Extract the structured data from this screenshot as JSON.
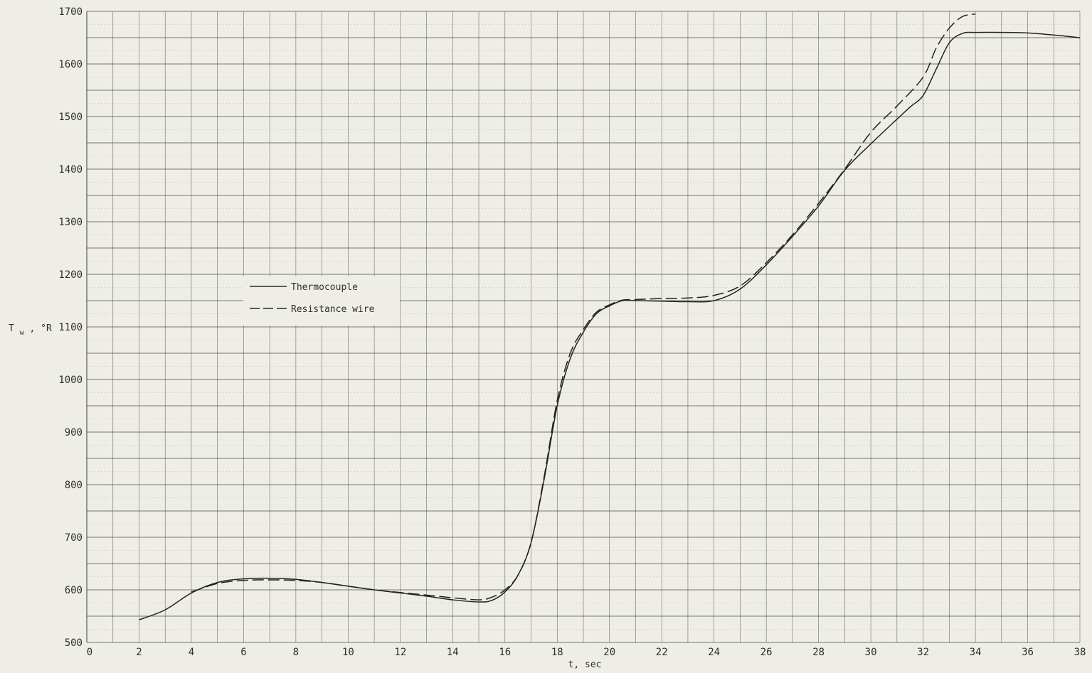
{
  "chart_data": {
    "type": "line",
    "title": "",
    "xlabel": "t, sec",
    "ylabel_main": "T",
    "ylabel_sub": "w",
    "ylabel_unit": ", °R",
    "xlim": [
      0,
      38
    ],
    "ylim": [
      500,
      1700
    ],
    "x_ticks": [
      "0",
      "2",
      "4",
      "6",
      "8",
      "10",
      "12",
      "14",
      "16",
      "18",
      "20",
      "22",
      "24",
      "26",
      "28",
      "30",
      "32",
      "34",
      "36",
      "38"
    ],
    "y_ticks": [
      "500",
      "600",
      "700",
      "800",
      "900",
      "1000",
      "1100",
      "1200",
      "1300",
      "1400",
      "1500",
      "1600",
      "1700"
    ],
    "grid": true,
    "legend_position": "center-left",
    "series": [
      {
        "name": "Thermocouple",
        "style": "solid",
        "x": [
          2,
          3,
          4,
          5,
          6,
          7,
          8,
          9,
          10,
          11,
          12,
          13,
          14,
          15,
          15.5,
          16,
          16.5,
          17,
          17.5,
          18,
          18.5,
          19,
          19.5,
          20,
          20.5,
          21,
          22,
          23,
          24,
          25,
          26,
          27,
          28,
          29,
          30,
          31,
          31.5,
          32,
          32.5,
          33,
          33.5,
          34,
          35,
          36,
          37,
          38
        ],
        "y": [
          543,
          562,
          594,
          614,
          621,
          622,
          620,
          614,
          607,
          600,
          594,
          588,
          581,
          577,
          580,
          596,
          628,
          690,
          810,
          950,
          1040,
          1090,
          1125,
          1140,
          1150,
          1150,
          1149,
          1148,
          1150,
          1172,
          1218,
          1272,
          1330,
          1398,
          1448,
          1495,
          1518,
          1540,
          1590,
          1640,
          1658,
          1660,
          1660,
          1659,
          1655,
          1650
        ]
      },
      {
        "name": "Resistance wire",
        "style": "dashed",
        "x": [
          4,
          5,
          6,
          7,
          8,
          9,
          10,
          11,
          12,
          13,
          14,
          15,
          15.5,
          16,
          16.5,
          17,
          17.5,
          18,
          18.5,
          19,
          19.5,
          20,
          20.5,
          21,
          22,
          23,
          24,
          25,
          26,
          27,
          28,
          29,
          30,
          31,
          32,
          32.5,
          33,
          33.5,
          34
        ],
        "y": [
          596,
          612,
          618,
          619,
          618,
          614,
          607,
          600,
          595,
          590,
          585,
          581,
          586,
          600,
          628,
          690,
          815,
          960,
          1050,
          1095,
          1128,
          1142,
          1151,
          1152,
          1154,
          1155,
          1160,
          1178,
          1222,
          1275,
          1335,
          1400,
          1470,
          1520,
          1575,
          1630,
          1668,
          1690,
          1695
        ]
      }
    ]
  }
}
